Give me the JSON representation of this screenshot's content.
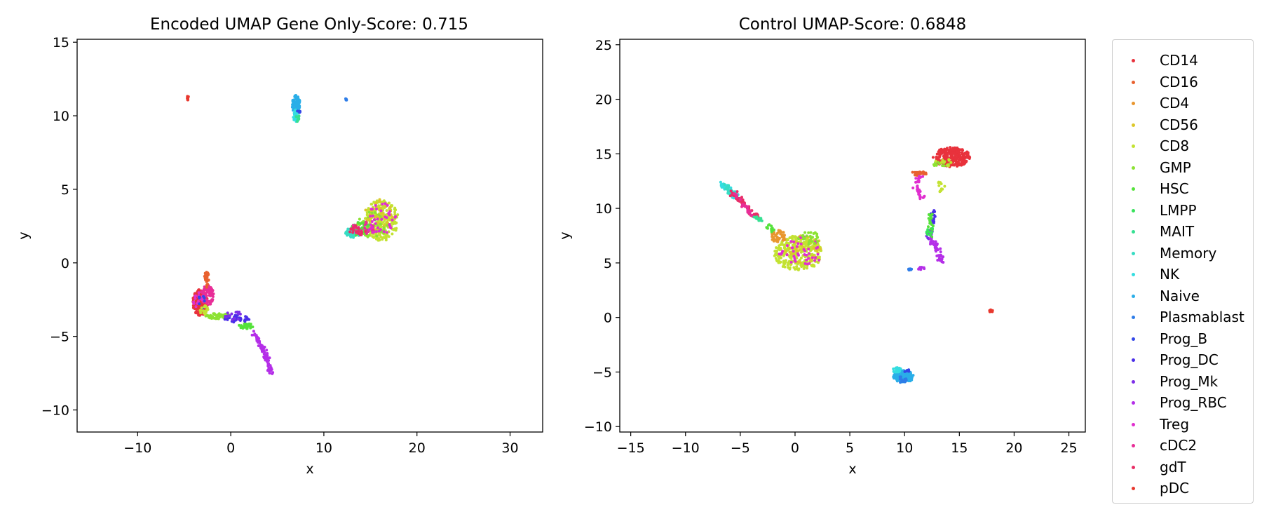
{
  "chart_data": [
    {
      "type": "scatter",
      "title": "Encoded UMAP Gene Only-Score: 0.715",
      "xlabel": "x",
      "ylabel": "y",
      "xlim": [
        -16.5,
        33.5
      ],
      "ylim": [
        -11.5,
        15.2
      ],
      "xticks": [
        -10,
        0,
        10,
        20,
        30
      ],
      "yticks": [
        -10,
        -5,
        0,
        5,
        10,
        15
      ],
      "clusters": [
        {
          "category": "CD8",
          "cx": 16.2,
          "cy": 2.9,
          "rx": 1.8,
          "ry": 1.4,
          "n": 260
        },
        {
          "category": "GMP",
          "cx": 15.2,
          "cy": 2.6,
          "rx": 1.6,
          "ry": 0.9,
          "n": 60
        },
        {
          "category": "Memory",
          "cx": 13.2,
          "cy": 2.1,
          "rx": 0.9,
          "ry": 0.4,
          "n": 70
        },
        {
          "category": "HSC",
          "cx": 14.0,
          "cy": 2.3,
          "rx": 1.2,
          "ry": 0.5,
          "n": 30
        },
        {
          "category": "CD56",
          "cx": 15.8,
          "cy": 3.3,
          "rx": 1.6,
          "ry": 1.1,
          "n": 40
        },
        {
          "category": "cDC2",
          "cx": 14.2,
          "cy": 2.3,
          "rx": 1.3,
          "ry": 0.5,
          "n": 30
        },
        {
          "category": "Treg",
          "cx": 16.2,
          "cy": 2.9,
          "rx": 1.6,
          "ry": 1.2,
          "n": 40
        },
        {
          "category": "gdT",
          "cx": 13.6,
          "cy": 2.2,
          "rx": 0.9,
          "ry": 0.35,
          "n": 20
        },
        {
          "category": "Naive",
          "cx": 7.0,
          "cy": 10.8,
          "rx": 0.45,
          "ry": 0.6,
          "n": 90
        },
        {
          "category": "NK",
          "cx": 7.0,
          "cy": 10.0,
          "rx": 0.3,
          "ry": 0.4,
          "n": 30
        },
        {
          "category": "MAIT",
          "cx": 7.2,
          "cy": 9.8,
          "rx": 0.2,
          "ry": 0.3,
          "n": 10
        },
        {
          "category": "Prog_B",
          "cx": 7.3,
          "cy": 10.3,
          "rx": 0.35,
          "ry": 0.1,
          "n": 5
        },
        {
          "category": "Plasmablast",
          "cx": 12.4,
          "cy": 11.15,
          "rx": 0.08,
          "ry": 0.1,
          "n": 6
        },
        {
          "category": "pDC",
          "cx": -4.6,
          "cy": 11.2,
          "rx": 0.1,
          "ry": 0.15,
          "n": 8
        },
        {
          "category": "CD14",
          "cx": -3.3,
          "cy": -2.7,
          "rx": 0.8,
          "ry": 0.9,
          "n": 220
        },
        {
          "category": "cDC2",
          "cx": -2.5,
          "cy": -2.2,
          "rx": 0.7,
          "ry": 0.7,
          "n": 80
        },
        {
          "category": "CD16",
          "cx": -2.6,
          "cy": -1.1,
          "rx": 0.25,
          "ry": 0.6,
          "n": 30
        },
        {
          "category": "Treg",
          "cx": -3.4,
          "cy": -2.6,
          "rx": 0.6,
          "ry": 0.6,
          "n": 15
        },
        {
          "category": "Prog_B",
          "cx": -3.1,
          "cy": -2.6,
          "rx": 0.4,
          "ry": 0.5,
          "n": 8
        },
        {
          "category": "GMP",
          "cx": -1.4,
          "cy": -3.6,
          "rx": 1.3,
          "ry": 0.2,
          "n": 45
        },
        {
          "category": "CD8",
          "cx": -2.9,
          "cy": -3.2,
          "rx": 0.5,
          "ry": 0.3,
          "n": 20
        },
        {
          "category": "HSC",
          "cx": 1.6,
          "cy": -4.3,
          "rx": 0.8,
          "ry": 0.2,
          "n": 30
        },
        {
          "category": "Prog_DC",
          "cx": 0.6,
          "cy": -3.8,
          "rx": 1.4,
          "ry": 0.25,
          "n": 35
        },
        {
          "category": "Prog_Mk",
          "cx": 0.4,
          "cy": -3.6,
          "rx": 1.0,
          "ry": 0.3,
          "n": 15
        }
      ],
      "trails": [
        {
          "category": "Prog_RBC",
          "path": [
            [
              2.4,
              -4.7
            ],
            [
              3.2,
              -5.6
            ],
            [
              3.9,
              -6.5
            ],
            [
              4.3,
              -7.5
            ]
          ],
          "n": 90
        }
      ]
    },
    {
      "type": "scatter",
      "title": "Control UMAP-Score: 0.6848",
      "xlabel": "x",
      "ylabel": "y",
      "xlim": [
        -16.0,
        26.5
      ],
      "ylim": [
        -10.5,
        25.5
      ],
      "xticks": [
        -15,
        -10,
        -5,
        0,
        5,
        10,
        15,
        20,
        25
      ],
      "yticks": [
        -10,
        -5,
        0,
        5,
        10,
        15,
        20,
        25
      ],
      "clusters": [
        {
          "category": "CD8",
          "cx": 0.3,
          "cy": 5.9,
          "rx": 2.2,
          "ry": 1.6,
          "n": 280
        },
        {
          "category": "CD56",
          "cx": 0.8,
          "cy": 6.3,
          "rx": 1.7,
          "ry": 1.3,
          "n": 40
        },
        {
          "category": "Treg",
          "cx": 0.5,
          "cy": 6.0,
          "rx": 2.0,
          "ry": 1.4,
          "n": 45
        },
        {
          "category": "CD4",
          "cx": -1.5,
          "cy": 7.4,
          "rx": 0.7,
          "ry": 0.6,
          "n": 40
        },
        {
          "category": "GMP",
          "cx": 1.3,
          "cy": 7.3,
          "rx": 1.0,
          "ry": 0.6,
          "n": 25
        },
        {
          "category": "CD14",
          "cx": 14.3,
          "cy": 14.7,
          "rx": 1.7,
          "ry": 0.9,
          "n": 260
        },
        {
          "category": "CD16",
          "cx": 11.3,
          "cy": 13.2,
          "rx": 0.7,
          "ry": 0.2,
          "n": 25
        },
        {
          "category": "GMP",
          "cx": 13.4,
          "cy": 14.0,
          "rx": 0.9,
          "ry": 0.4,
          "n": 15
        },
        {
          "category": "CD8",
          "cx": 13.6,
          "cy": 14.2,
          "rx": 0.9,
          "ry": 0.4,
          "n": 10
        },
        {
          "category": "Naive",
          "cx": 9.9,
          "cy": -5.4,
          "rx": 0.95,
          "ry": 0.55,
          "n": 130
        },
        {
          "category": "NK",
          "cx": 9.3,
          "cy": -4.8,
          "rx": 0.4,
          "ry": 0.25,
          "n": 30
        },
        {
          "category": "Plasmablast",
          "cx": 9.7,
          "cy": -5.7,
          "rx": 0.5,
          "ry": 0.3,
          "n": 15
        },
        {
          "category": "Prog_B",
          "cx": 10.2,
          "cy": -5.0,
          "rx": 0.3,
          "ry": 0.3,
          "n": 5
        },
        {
          "category": "Plasmablast",
          "cx": 10.5,
          "cy": 4.4,
          "rx": 0.15,
          "ry": 0.1,
          "n": 8
        },
        {
          "category": "pDC",
          "cx": 17.9,
          "cy": 0.6,
          "rx": 0.15,
          "ry": 0.15,
          "n": 10
        },
        {
          "category": "Prog_Mk",
          "cx": 12.3,
          "cy": 7.6,
          "rx": 0.3,
          "ry": 0.5,
          "n": 15
        },
        {
          "category": "Prog_DC",
          "cx": 12.6,
          "cy": 9.3,
          "rx": 0.2,
          "ry": 0.7,
          "n": 15
        },
        {
          "category": "Prog_RBC",
          "cx": 11.5,
          "cy": 4.5,
          "rx": 0.3,
          "ry": 0.15,
          "n": 12
        },
        {
          "category": "HSC",
          "cx": 12.4,
          "cy": 8.5,
          "rx": 0.3,
          "ry": 1.2,
          "n": 20
        },
        {
          "category": "LMPP",
          "cx": 12.3,
          "cy": 8.0,
          "rx": 0.3,
          "ry": 0.6,
          "n": 10
        }
      ],
      "trails": [
        {
          "category": "NK",
          "path": [
            [
              -6.8,
              12.3
            ],
            [
              -5.9,
              11.7
            ],
            [
              -5.2,
              11.0
            ]
          ],
          "n": 60
        },
        {
          "category": "Memory",
          "path": [
            [
              -6.4,
              12.0
            ],
            [
              -5.6,
              11.3
            ]
          ],
          "n": 25
        },
        {
          "category": "gdT",
          "path": [
            [
              -5.7,
              11.4
            ],
            [
              -4.9,
              10.6
            ],
            [
              -4.1,
              9.7
            ],
            [
              -3.4,
              9.2
            ]
          ],
          "n": 70
        },
        {
          "category": "cDC2",
          "path": [
            [
              -5.5,
              11.3
            ],
            [
              -4.6,
              10.2
            ],
            [
              -3.8,
              9.3
            ]
          ],
          "n": 25
        },
        {
          "category": "MAIT",
          "path": [
            [
              -3.7,
              9.3
            ],
            [
              -3.0,
              8.9
            ]
          ],
          "n": 15
        },
        {
          "category": "HSC",
          "path": [
            [
              -2.8,
              8.6
            ],
            [
              -2.0,
              7.9
            ]
          ],
          "n": 12
        },
        {
          "category": "Treg",
          "path": [
            [
              11.5,
              13.0
            ],
            [
              11.1,
              12.2
            ],
            [
              11.2,
              11.5
            ],
            [
              11.6,
              10.7
            ]
          ],
          "n": 35
        },
        {
          "category": "Prog_RBC",
          "path": [
            [
              12.4,
              7.2
            ],
            [
              12.9,
              6.5
            ],
            [
              13.2,
              5.7
            ],
            [
              13.3,
              5.0
            ]
          ],
          "n": 40
        },
        {
          "category": "CD8",
          "path": [
            [
              13.4,
              11.5
            ],
            [
              13.2,
              12.4
            ]
          ],
          "n": 12
        }
      ]
    }
  ],
  "legend": {
    "items": [
      {
        "label": "CD14",
        "color": "#e8323c"
      },
      {
        "label": "CD16",
        "color": "#e8612f"
      },
      {
        "label": "CD4",
        "color": "#e8962e"
      },
      {
        "label": "CD56",
        "color": "#dcc72a"
      },
      {
        "label": "CD8",
        "color": "#c3e232"
      },
      {
        "label": "GMP",
        "color": "#8ce233"
      },
      {
        "label": "HSC",
        "color": "#55e23b"
      },
      {
        "label": "LMPP",
        "color": "#37e25c"
      },
      {
        "label": "MAIT",
        "color": "#36e092"
      },
      {
        "label": "Memory",
        "color": "#37dcc3"
      },
      {
        "label": "NK",
        "color": "#35dde0"
      },
      {
        "label": "Naive",
        "color": "#2aaee8"
      },
      {
        "label": "Plasmablast",
        "color": "#2e7de8"
      },
      {
        "label": "Prog_B",
        "color": "#3347e8"
      },
      {
        "label": "Prog_DC",
        "color": "#4a2ee8"
      },
      {
        "label": "Prog_Mk",
        "color": "#7d2ee8"
      },
      {
        "label": "Prog_RBC",
        "color": "#b42ee8"
      },
      {
        "label": "Treg",
        "color": "#e02ecf"
      },
      {
        "label": "cDC2",
        "color": "#e82e98"
      },
      {
        "label": "gdT",
        "color": "#e82e66"
      },
      {
        "label": "pDC",
        "color": "#e8382e"
      }
    ]
  }
}
